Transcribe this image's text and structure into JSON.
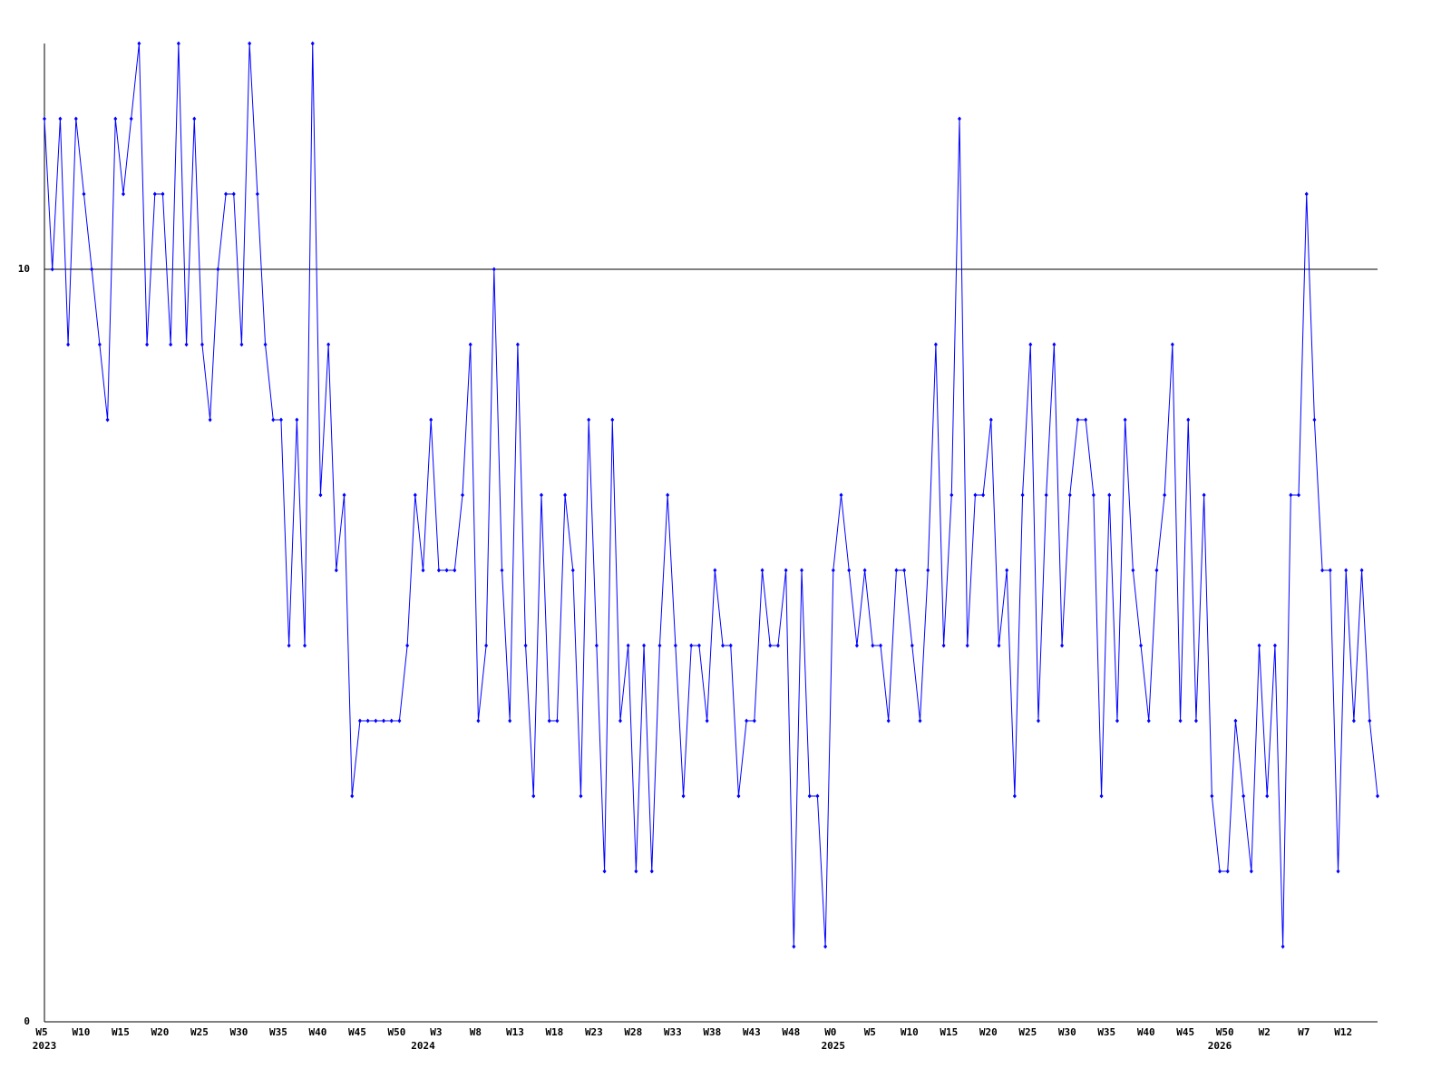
{
  "chart_data": {
    "type": "line",
    "categories": [
      "W5",
      null,
      null,
      null,
      null,
      "W10",
      null,
      null,
      null,
      null,
      "W15",
      null,
      null,
      null,
      null,
      "W20",
      null,
      null,
      null,
      null,
      "W25",
      null,
      null,
      null,
      null,
      "W30",
      null,
      null,
      null,
      null,
      "W35",
      null,
      null,
      null,
      null,
      "W40",
      null,
      null,
      null,
      null,
      "W45",
      null,
      null,
      null,
      null,
      "W50",
      null,
      null,
      null,
      null,
      "W3",
      null,
      null,
      null,
      null,
      "W8",
      null,
      null,
      null,
      null,
      "W13",
      null,
      null,
      null,
      null,
      "W18",
      null,
      null,
      null,
      null,
      "W23",
      null,
      null,
      null,
      null,
      "W28",
      null,
      null,
      null,
      null,
      "W33",
      null,
      null,
      null,
      null,
      "W38",
      null,
      null,
      null,
      null,
      "W43",
      null,
      null,
      null,
      null,
      "W48",
      null,
      null,
      null,
      null,
      "W0",
      null,
      null,
      null,
      null,
      "W5",
      null,
      null,
      null,
      null,
      "W10",
      null,
      null,
      null,
      null,
      "W15",
      null,
      null,
      null,
      null,
      "W20",
      null,
      null,
      null,
      null,
      "W25",
      null,
      null,
      null,
      null,
      "W30",
      null,
      null,
      null,
      null,
      "W35",
      null,
      null,
      null,
      null,
      "W40",
      null,
      null,
      null,
      null,
      "W45",
      null,
      null,
      null,
      null,
      "W50",
      null,
      null,
      null,
      null,
      "W2",
      null,
      null,
      null,
      null,
      "W7",
      null,
      null,
      null,
      null,
      "W12",
      null,
      null,
      null,
      null
    ],
    "category_years": [
      "2023",
      null,
      null,
      null,
      null,
      null,
      null,
      null,
      null,
      null,
      null,
      null,
      null,
      null,
      null,
      null,
      null,
      null,
      null,
      null,
      null,
      null,
      null,
      null,
      null,
      null,
      null,
      null,
      null,
      null,
      null,
      null,
      null,
      null,
      null,
      null,
      null,
      null,
      null,
      null,
      null,
      null,
      null,
      null,
      null,
      null,
      null,
      null,
      "2024",
      null,
      null,
      null,
      null,
      null,
      null,
      null,
      null,
      null,
      null,
      null,
      null,
      null,
      null,
      null,
      null,
      null,
      null,
      null,
      null,
      null,
      null,
      null,
      null,
      null,
      null,
      null,
      null,
      null,
      null,
      null,
      null,
      null,
      null,
      null,
      null,
      null,
      null,
      null,
      null,
      null,
      null,
      null,
      null,
      null,
      null,
      null,
      null,
      null,
      null,
      null,
      "2025",
      null,
      null,
      null,
      null,
      null,
      null,
      null,
      null,
      null,
      null,
      null,
      null,
      null,
      null,
      null,
      null,
      null,
      null,
      null,
      null,
      null,
      null,
      null,
      null,
      null,
      null,
      null,
      null,
      null,
      null,
      null,
      null,
      null,
      null,
      null,
      null,
      null,
      null,
      null,
      null,
      null,
      null,
      null,
      null,
      null,
      null,
      null,
      null,
      "2026",
      null,
      null,
      null,
      null,
      null,
      null,
      null,
      null,
      null,
      null,
      null,
      null,
      null,
      null,
      null,
      null
    ],
    "values": [
      12,
      10,
      12,
      9,
      12,
      11,
      10,
      9,
      8,
      12,
      11,
      12,
      13,
      9,
      11,
      11,
      9,
      13,
      9,
      12,
      9,
      8,
      10,
      11,
      11,
      9,
      13,
      11,
      9,
      8,
      8,
      5,
      8,
      5,
      13,
      7,
      9,
      6,
      7,
      3,
      4,
      4,
      4,
      4,
      4,
      4,
      5,
      7,
      6,
      8,
      6,
      6,
      6,
      7,
      9,
      4,
      5,
      10,
      6,
      4,
      9,
      5,
      3,
      7,
      4,
      4,
      7,
      6,
      3,
      8,
      5,
      2,
      8,
      4,
      5,
      2,
      5,
      2,
      5,
      7,
      5,
      3,
      5,
      5,
      4,
      6,
      5,
      5,
      3,
      4,
      4,
      6,
      5,
      5,
      6,
      1,
      6,
      3,
      3,
      1,
      6,
      7,
      6,
      5,
      6,
      5,
      5,
      4,
      6,
      6,
      5,
      4,
      6,
      9,
      5,
      7,
      12,
      5,
      7,
      7,
      8,
      5,
      6,
      3,
      7,
      9,
      4,
      7,
      9,
      5,
      7,
      8,
      8,
      7,
      3,
      7,
      4,
      8,
      6,
      5,
      4,
      6,
      7,
      9,
      4,
      8,
      4,
      7,
      3,
      2,
      2,
      4,
      3,
      2,
      5,
      3,
      5,
      1,
      7,
      7,
      11,
      8,
      6,
      6,
      2,
      6,
      4,
      6,
      4,
      3
    ],
    "color": "#0000ff",
    "ylim": [
      0,
      13
    ],
    "yticks": [
      0,
      10
    ],
    "grid": true
  }
}
